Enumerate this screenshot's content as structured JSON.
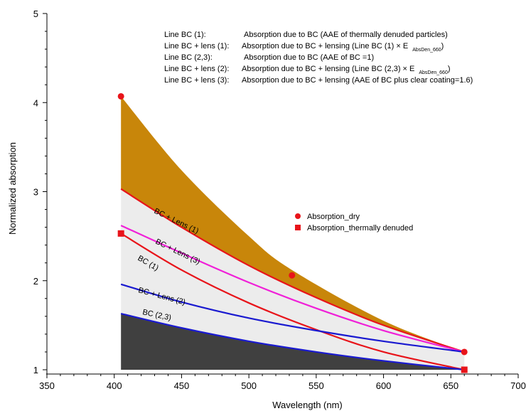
{
  "chart_data": {
    "type": "line",
    "xlabel": "Wavelength (nm)",
    "ylabel": "Normalized absorption",
    "xlim": [
      350,
      700
    ],
    "ylim": [
      1,
      5
    ],
    "x_ticks": [
      "350",
      "400",
      "450",
      "500",
      "550",
      "600",
      "650",
      "700"
    ],
    "y_ticks": [
      "1",
      "2",
      "3",
      "4",
      "5"
    ],
    "fill_colors": {
      "total": "#c8860a",
      "lensing": "#ececec",
      "bc": "#404040"
    },
    "annotations": [
      {
        "label": "Line BC (1):",
        "text": "Absorption due to BC (AAE of thermally denuded particles)"
      },
      {
        "label": "Line BC + lens (1):",
        "text": "Absorption due to BC + lensing (Line BC (1) × E",
        "sub": "AbsDen_660",
        "tail": ")"
      },
      {
        "label": "Line BC (2,3):",
        "text": "Absorption due to BC (AAE of BC =1)"
      },
      {
        "label": "Line BC + lens (2):",
        "text": "Absorption due to BC + lensing (Line BC (2,3) × E",
        "sub": "AbsDen_660",
        "tail": ")"
      },
      {
        "label": "Line BC + lens (3):",
        "text": "Absorption due to BC + lensing (AAE of BC plus clear coating=1.6)"
      }
    ],
    "legend": {
      "position": "center-right",
      "entries": [
        {
          "name": "Absorption_dry",
          "marker": "circle",
          "color": "#e8141a"
        },
        {
          "name": "Absorption_thermally denuded",
          "marker": "square",
          "color": "#e8141a"
        }
      ]
    },
    "series": [
      {
        "name": "BC + Lens (1)",
        "color": "#e8141a",
        "x": [
          405,
          450,
          500,
          550,
          600,
          660
        ],
        "y": [
          3.03,
          2.6,
          2.17,
          1.81,
          1.5,
          1.2
        ]
      },
      {
        "name": "BC + Lens (3)",
        "color": "#f020d8",
        "x": [
          405,
          450,
          500,
          550,
          600,
          660
        ],
        "y": [
          2.62,
          2.31,
          1.98,
          1.69,
          1.44,
          1.2
        ]
      },
      {
        "name": "BC (1)",
        "color": "#e8141a",
        "x": [
          405,
          450,
          500,
          550,
          600,
          660
        ],
        "y": [
          2.53,
          2.12,
          1.75,
          1.45,
          1.2,
          1.0
        ]
      },
      {
        "name": "BC + Lens (2)",
        "color": "#1a1ad0",
        "x": [
          405,
          450,
          500,
          550,
          600,
          660
        ],
        "y": [
          1.96,
          1.76,
          1.58,
          1.44,
          1.32,
          1.2
        ]
      },
      {
        "name": "BC (2,3)",
        "color": "#1a1ad0",
        "x": [
          405,
          450,
          500,
          550,
          600,
          660
        ],
        "y": [
          1.63,
          1.47,
          1.32,
          1.2,
          1.1,
          1.0
        ]
      },
      {
        "name": "Absorption_dry upper boundary",
        "color": "none",
        "x": [
          405,
          450,
          500,
          532,
          600,
          660
        ],
        "y": [
          4.07,
          3.24,
          2.5,
          2.12,
          1.55,
          1.2
        ]
      }
    ],
    "points": {
      "Absorption_dry": {
        "x": [
          405,
          532,
          660
        ],
        "y": [
          4.07,
          2.06,
          1.2
        ]
      },
      "Absorption_thermally denuded": {
        "x": [
          405,
          660
        ],
        "y": [
          2.53,
          1.0
        ]
      }
    }
  }
}
